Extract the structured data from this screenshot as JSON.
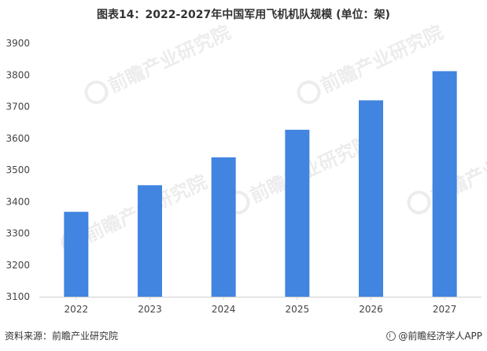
{
  "chart_data": {
    "type": "bar",
    "title": "图表14：2022-2027年中国军用飞机机队规模 (单位：架)",
    "categories": [
      "2022",
      "2023",
      "2024",
      "2025",
      "2026",
      "2027"
    ],
    "values": [
      3368,
      3452,
      3540,
      3627,
      3720,
      3812
    ],
    "ylim": [
      3100,
      3900
    ],
    "yticks": [
      3100,
      3200,
      3300,
      3400,
      3500,
      3600,
      3700,
      3800,
      3900
    ],
    "xlabel": "",
    "ylabel": "",
    "grid": false,
    "bar_color": "#4285e0"
  },
  "footer": {
    "source": "资料来源：前瞻产业研究院",
    "brand": "@前瞻经济学人APP"
  },
  "watermark": {
    "text": "前瞻产业研究院"
  }
}
